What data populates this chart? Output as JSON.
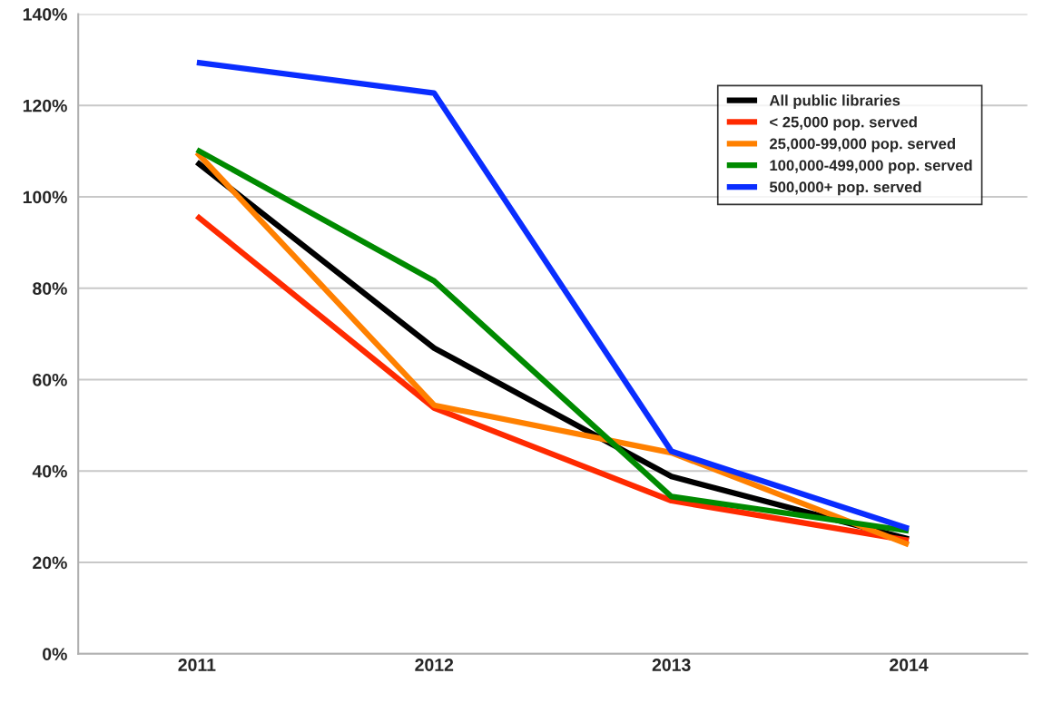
{
  "chart_data": {
    "type": "line",
    "categories": [
      "2011",
      "2012",
      "2013",
      "2014"
    ],
    "series": [
      {
        "name": "All public libraries",
        "color": "#000000",
        "values": [
          107.6,
          66.9,
          38.8,
          25.1
        ]
      },
      {
        "name": "< 25,000 pop. served",
        "color": "#ff2a00",
        "values": [
          95.8,
          53.8,
          33.5,
          24.8
        ]
      },
      {
        "name": "25,000-99,000 pop. served",
        "color": "#ff8000",
        "values": [
          109.7,
          54.4,
          44.0,
          23.9
        ]
      },
      {
        "name": "100,000-499,000 pop. served",
        "color": "#008a00",
        "values": [
          110.3,
          81.6,
          34.4,
          26.9
        ]
      },
      {
        "name": "500,000+ pop. served",
        "color": "#0a2dff",
        "values": [
          129.4,
          122.7,
          44.3,
          27.4
        ]
      }
    ],
    "ylim": [
      0,
      140
    ],
    "yticks": [
      {
        "value": 0,
        "label": "0%"
      },
      {
        "value": 20,
        "label": "20%"
      },
      {
        "value": 40,
        "label": "40%"
      },
      {
        "value": 60,
        "label": "60%"
      },
      {
        "value": 80,
        "label": "80%"
      },
      {
        "value": 100,
        "label": "100%"
      },
      {
        "value": 120,
        "label": "120%"
      },
      {
        "value": 140,
        "label": "140%"
      }
    ],
    "grid": "y",
    "legend": "top right",
    "marker": "none",
    "line_style": "solid"
  }
}
